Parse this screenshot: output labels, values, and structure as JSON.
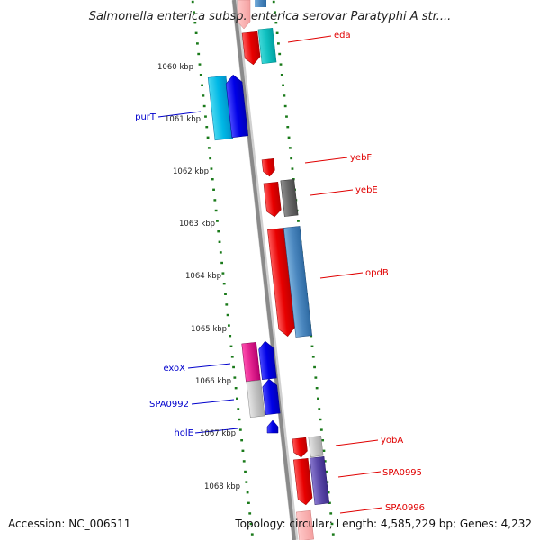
{
  "header": {
    "title": "Salmonella enterica subsp. enterica serovar Paratyphi A str...."
  },
  "footer": {
    "accession": "Accession: NC_006511",
    "topology": "Topology: circular; Length: 4,585,229 bp; Genes: 4,232"
  },
  "scale_labels": [
    "1060 kbp",
    "1061 kbp",
    "1062 kbp",
    "1063 kbp",
    "1064 kbp",
    "1065 kbp",
    "1066 kbp",
    "1067 kbp",
    "1068 kbp"
  ],
  "genes_right": [
    "eda",
    "yebF",
    "yebE",
    "opdB",
    "yobA",
    "SPA0995",
    "SPA0996"
  ],
  "genes_left": [
    "purT",
    "exoX",
    "SPA0992",
    "holE"
  ],
  "colors": {
    "forward_gene": "#ee0000",
    "reverse_gene": "#0000ee",
    "right_label": "#e00000",
    "left_label": "#0000cc",
    "tick": "#1a7a1a",
    "backbone": "#888888"
  }
}
